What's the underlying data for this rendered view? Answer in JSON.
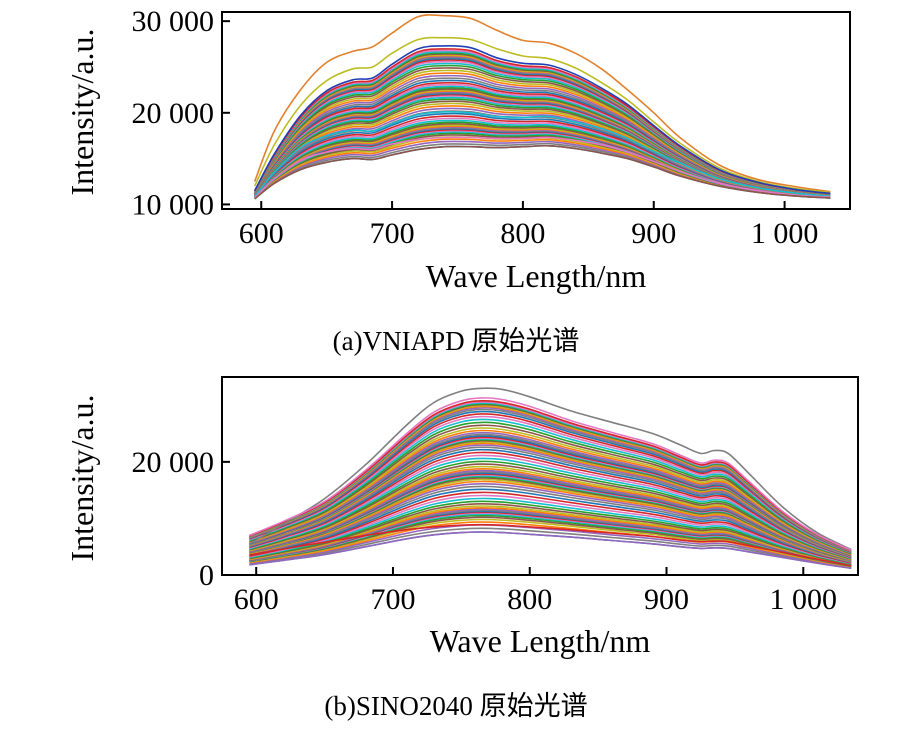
{
  "chart_data": [
    {
      "type": "line",
      "xlabel": "Wave Length/nm",
      "ylabel": "Intensity/a.u.",
      "xlim": [
        570,
        1050
      ],
      "ylim": [
        9500,
        31000
      ],
      "xticks": [
        600,
        700,
        800,
        900,
        1000
      ],
      "xtick_labels": [
        "600",
        "700",
        "800",
        "900",
        "1 000"
      ],
      "yticks": [
        10000,
        20000,
        30000
      ],
      "ytick_labels": [
        "10 000",
        "20 000",
        "30 000"
      ],
      "caption": "(a)VNIAPD 原始光谱",
      "grid": false,
      "x": [
        595,
        610,
        630,
        650,
        670,
        685,
        700,
        720,
        740,
        760,
        780,
        800,
        820,
        840,
        860,
        880,
        900,
        920,
        950,
        980,
        1010,
        1035
      ],
      "base_profile": [
        11000,
        14500,
        18500,
        20800,
        22000,
        22200,
        23800,
        25200,
        25500,
        25400,
        24400,
        23900,
        23800,
        22900,
        21600,
        20000,
        18000,
        16000,
        13500,
        12200,
        11500,
        11100
      ],
      "profile_note_series": [
        {
          "values": [
            12500,
            18000,
            22500,
            25500,
            26700,
            27200,
            28700,
            30500,
            30600,
            30300,
            29000,
            27900,
            27600,
            26500,
            24800,
            22500,
            20000,
            17300,
            14300,
            12700,
            11900,
            11400
          ],
          "color": "#e1812c"
        },
        {
          "values": [
            12000,
            16500,
            20800,
            23500,
            24800,
            25000,
            26500,
            28000,
            28200,
            28000,
            27000,
            26200,
            25900,
            24900,
            23300,
            21400,
            19000,
            16700,
            14000,
            12500,
            11700,
            11300
          ],
          "color": "#bcbd22"
        },
        {
          "values": [
            11500,
            15500,
            19700,
            22400,
            23600,
            23800,
            25300,
            27000,
            27300,
            27100,
            26000,
            25400,
            25200,
            24200,
            22700,
            20900,
            18600,
            16400,
            13800,
            12400,
            11600,
            11200
          ],
          "color": "#1f3fb4"
        },
        {
          "values": [
            10800,
            13500,
            16200,
            17500,
            18100,
            18000,
            18800,
            19800,
            20100,
            20000,
            19600,
            19500,
            19600,
            19000,
            18300,
            17200,
            15800,
            14500,
            12800,
            11800,
            11200,
            10900
          ],
          "color": "#17becf"
        },
        {
          "values": [
            10700,
            12800,
            14800,
            15700,
            16100,
            16000,
            16600,
            17100,
            17300,
            17300,
            17200,
            17200,
            17300,
            17000,
            16500,
            15700,
            14700,
            13600,
            12300,
            11500,
            11000,
            10800
          ],
          "color": "#e377c2"
        },
        {
          "values": [
            10600,
            12300,
            13800,
            14600,
            15000,
            14900,
            15400,
            16000,
            16300,
            16300,
            16200,
            16300,
            16400,
            16100,
            15600,
            15000,
            14100,
            13100,
            12000,
            11300,
            10900,
            10700
          ],
          "color": "#8c564b"
        }
      ],
      "extra_series_count": 60
    },
    {
      "type": "line",
      "xlabel": "Wave Length/nm",
      "ylabel": "Intensity/a.u.",
      "xlim": [
        575,
        1040
      ],
      "ylim": [
        0,
        35000
      ],
      "xticks": [
        600,
        700,
        800,
        900,
        1000
      ],
      "xtick_labels": [
        "600",
        "700",
        "800",
        "900",
        "1 000"
      ],
      "yticks": [
        0,
        20000
      ],
      "ytick_labels": [
        "0",
        "20 000"
      ],
      "caption": "(b)SINO2040 原始光谱",
      "grid": false,
      "x": [
        595,
        620,
        650,
        680,
        710,
        730,
        750,
        765,
        780,
        800,
        830,
        860,
        890,
        910,
        925,
        935,
        945,
        960,
        985,
        1010,
        1035
      ],
      "profile_note_series": [
        {
          "values": [
            5500,
            9000,
            13500,
            19500,
            26500,
            30500,
            32500,
            33000,
            32800,
            31500,
            29000,
            27000,
            25000,
            23000,
            21500,
            22000,
            21500,
            18000,
            12000,
            7500,
            4500
          ],
          "color": "#7f7f7f"
        },
        {
          "values": [
            7000,
            9500,
            13000,
            18500,
            25000,
            28800,
            30800,
            31300,
            31000,
            29800,
            27300,
            25200,
            23200,
            21200,
            19800,
            20300,
            19800,
            16600,
            11200,
            7200,
            4400
          ],
          "color": "#e377c2"
        },
        {
          "values": [
            3500,
            4600,
            5800,
            7000,
            8000,
            8500,
            8800,
            8900,
            8800,
            8500,
            8000,
            7400,
            6800,
            6200,
            5900,
            6000,
            5900,
            5200,
            4000,
            2800,
            1600
          ],
          "color": "#d62728"
        },
        {
          "values": [
            1800,
            2600,
            3600,
            5000,
            6400,
            7100,
            7500,
            7600,
            7500,
            7200,
            6700,
            6100,
            5500,
            5000,
            4700,
            4800,
            4700,
            4100,
            3100,
            2100,
            1200
          ],
          "color": "#9467bd"
        }
      ],
      "extra_series_count": 70
    }
  ]
}
